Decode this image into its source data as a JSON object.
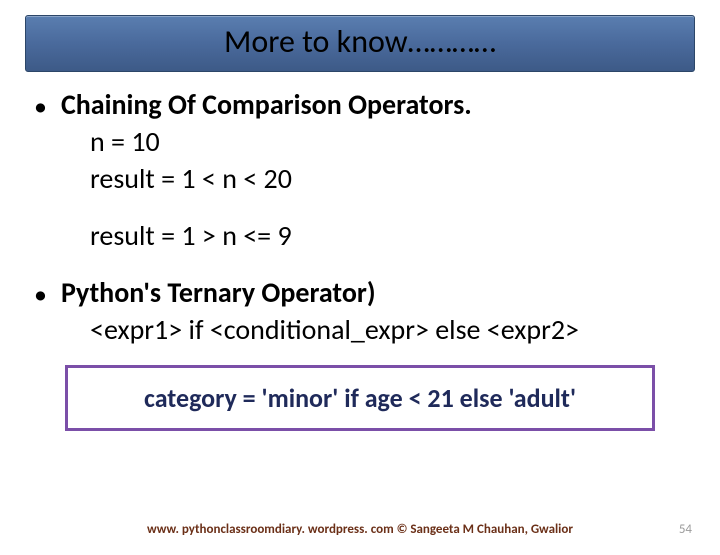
{
  "title": "More to know…………",
  "bullet1": {
    "heading": "Chaining Of Comparison Operators.",
    "line1": "n = 10",
    "line2": "result = 1 < n < 20",
    "line3": "result = 1 > n <= 9"
  },
  "bullet2": {
    "heading": "Python's Ternary Operator)",
    "line1": "<expr1> if  <conditional_expr> else <expr2>"
  },
  "example": "category = 'minor' if age < 21 else 'adult'",
  "footer": "www. pythonclassroomdiary. wordpress. com ©  Sangeeta M Chauhan, Gwalior",
  "page_number": "54",
  "colors": {
    "title_bg_top": "#5a7eb0",
    "title_bg_bottom": "#3d5a87",
    "title_border": "#2c4668",
    "box_border": "#7b4fa8",
    "example_text": "#1f2a5a",
    "footer_text": "#6b3018",
    "page_num": "#9a9a9a"
  }
}
